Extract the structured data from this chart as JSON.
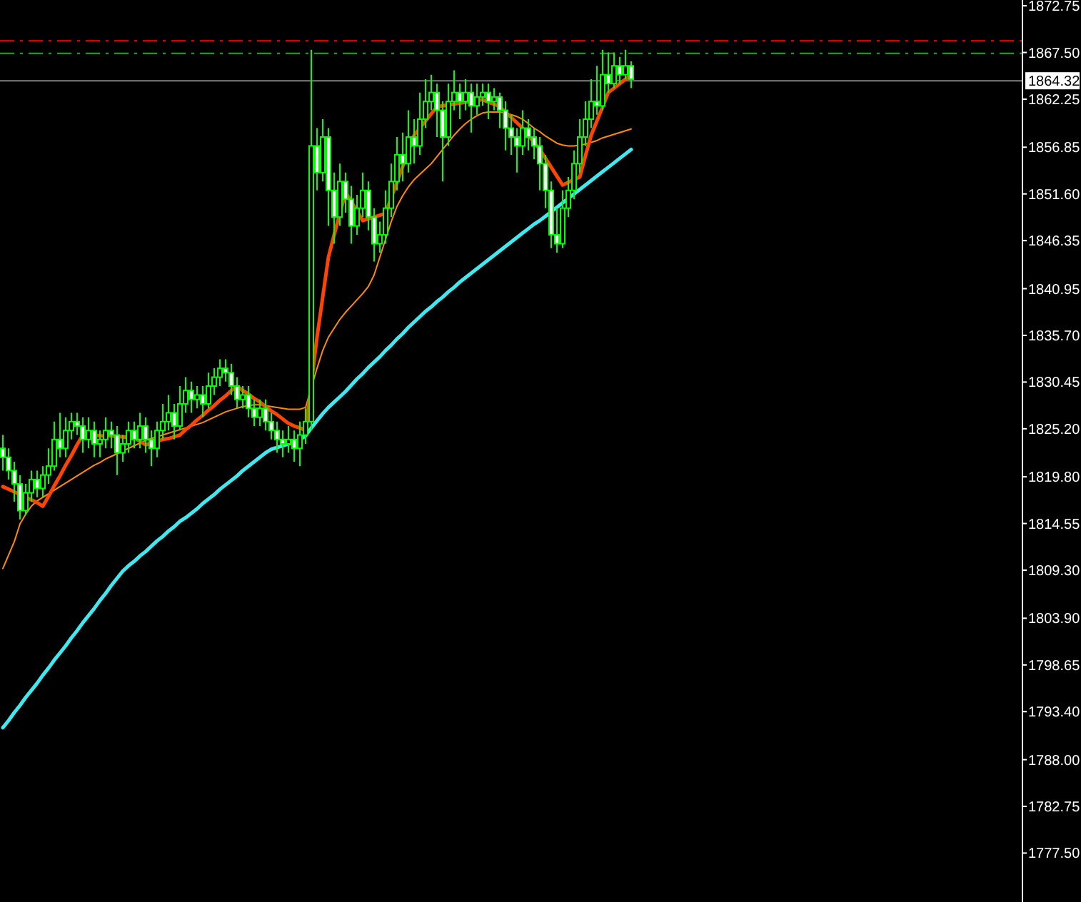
{
  "chart_data": {
    "type": "candlestick",
    "color": "#00ff00",
    "categories": [
      null,
      null,
      null,
      null,
      null,
      null,
      null,
      null,
      null,
      null,
      null,
      null,
      null,
      null,
      null,
      null,
      null,
      null,
      null,
      null,
      null,
      null,
      null,
      null,
      null,
      null,
      null,
      null,
      null,
      null,
      null,
      null,
      null,
      null,
      null,
      null,
      null,
      null,
      null,
      null,
      null,
      null,
      null,
      null,
      null,
      null,
      null,
      null,
      null,
      null,
      null,
      null,
      null,
      null,
      null,
      null,
      null,
      null,
      null,
      null,
      null,
      null,
      null,
      null,
      null,
      null,
      null,
      null,
      null,
      null,
      null,
      null,
      null,
      null,
      null,
      null,
      null,
      null,
      null,
      null,
      null,
      null,
      null,
      null,
      null,
      null,
      null,
      null,
      null,
      null,
      null,
      null,
      null,
      null,
      null,
      null,
      null,
      null,
      null,
      null,
      null,
      null,
      null,
      null,
      null,
      null,
      null,
      null,
      null,
      null,
      null
    ],
    "ohlc": [
      [
        1823,
        1824.5,
        1820.5,
        1822
      ],
      [
        1822,
        1823,
        1819.5,
        1820.5
      ],
      [
        1820.5,
        1821.5,
        1817,
        1819
      ],
      [
        1819,
        1820,
        1815,
        1816
      ],
      [
        1816,
        1819,
        1815.5,
        1818
      ],
      [
        1818,
        1820.5,
        1817,
        1819.5
      ],
      [
        1819.5,
        1820.5,
        1817.5,
        1818.5
      ],
      [
        1818.5,
        1821,
        1817.5,
        1820
      ],
      [
        1820,
        1823,
        1819,
        1821
      ],
      [
        1821,
        1826,
        1820.5,
        1824
      ],
      [
        1824,
        1827,
        1822,
        1823
      ],
      [
        1823,
        1826.5,
        1822,
        1825
      ],
      [
        1825,
        1827,
        1824,
        1826
      ],
      [
        1826,
        1827,
        1824.5,
        1825.5
      ],
      [
        1825.5,
        1826.5,
        1822.5,
        1824
      ],
      [
        1824,
        1826.5,
        1823,
        1825
      ],
      [
        1825,
        1826,
        1822,
        1823.5
      ],
      [
        1823.5,
        1825,
        1822,
        1824
      ],
      [
        1824,
        1826.5,
        1823,
        1825
      ],
      [
        1825,
        1826,
        1823,
        1824.5
      ],
      [
        1824.5,
        1825.5,
        1820,
        1822.5
      ],
      [
        1822.5,
        1824.5,
        1821.5,
        1823.5
      ],
      [
        1823.5,
        1826,
        1822.5,
        1825
      ],
      [
        1825,
        1826,
        1823,
        1824
      ],
      [
        1824,
        1827,
        1823,
        1825.5
      ],
      [
        1825.5,
        1826.5,
        1822.5,
        1824
      ],
      [
        1824,
        1825,
        1821,
        1823
      ],
      [
        1823,
        1826,
        1822,
        1825
      ],
      [
        1825,
        1828,
        1824,
        1826
      ],
      [
        1826,
        1829,
        1825,
        1827
      ],
      [
        1827,
        1828,
        1824,
        1825.5
      ],
      [
        1825.5,
        1830,
        1825,
        1828
      ],
      [
        1828,
        1831,
        1827,
        1829.5
      ],
      [
        1829.5,
        1830.5,
        1827,
        1828.5
      ],
      [
        1828.5,
        1830,
        1827.5,
        1829
      ],
      [
        1829,
        1830,
        1826.5,
        1828
      ],
      [
        1828,
        1831.5,
        1827.5,
        1830
      ],
      [
        1830,
        1832,
        1829,
        1831
      ],
      [
        1831,
        1833,
        1830,
        1832
      ],
      [
        1832,
        1833,
        1830.5,
        1831.5
      ],
      [
        1831.5,
        1832.5,
        1829,
        1830
      ],
      [
        1830,
        1831,
        1827.5,
        1828.5
      ],
      [
        1828.5,
        1830,
        1827.5,
        1829
      ],
      [
        1829,
        1830,
        1826.5,
        1827.5
      ],
      [
        1827.5,
        1828.5,
        1825.5,
        1826.5
      ],
      [
        1826.5,
        1828.5,
        1825.5,
        1827.5
      ],
      [
        1827.5,
        1828.5,
        1825,
        1826
      ],
      [
        1826,
        1827,
        1824,
        1825
      ],
      [
        1825,
        1826,
        1822.5,
        1824
      ],
      [
        1824,
        1825,
        1822,
        1823.5
      ],
      [
        1823.5,
        1825.5,
        1822.5,
        1824
      ],
      [
        1824,
        1825,
        1821.5,
        1823
      ],
      [
        1823,
        1826,
        1821,
        1824.5
      ],
      [
        1824.5,
        1827.5,
        1823.5,
        1826
      ],
      [
        1826,
        1867.8,
        1825,
        1857
      ],
      [
        1857,
        1859,
        1852,
        1854
      ],
      [
        1854,
        1860,
        1853,
        1858
      ],
      [
        1858,
        1859,
        1848,
        1852
      ],
      [
        1852,
        1854,
        1846,
        1849
      ],
      [
        1849,
        1855,
        1848,
        1853
      ],
      [
        1853,
        1854,
        1849.5,
        1851
      ],
      [
        1851,
        1852.5,
        1846,
        1848
      ],
      [
        1848,
        1851.5,
        1847,
        1850
      ],
      [
        1850,
        1854,
        1849,
        1852
      ],
      [
        1852,
        1853,
        1847.5,
        1849
      ],
      [
        1849,
        1850,
        1844,
        1846
      ],
      [
        1846,
        1848.5,
        1845,
        1847
      ],
      [
        1847,
        1852,
        1846,
        1850
      ],
      [
        1850,
        1855,
        1849,
        1853
      ],
      [
        1853,
        1858,
        1852,
        1856
      ],
      [
        1856,
        1858.5,
        1853,
        1855
      ],
      [
        1855,
        1861,
        1854,
        1858
      ],
      [
        1858,
        1860,
        1855,
        1857
      ],
      [
        1857,
        1863,
        1856,
        1860
      ],
      [
        1860,
        1864.5,
        1859,
        1862
      ],
      [
        1862,
        1865,
        1861,
        1863
      ],
      [
        1863,
        1864,
        1858,
        1861
      ],
      [
        1861,
        1862,
        1853,
        1858
      ],
      [
        1858,
        1864,
        1857,
        1862
      ],
      [
        1862,
        1865.5,
        1861,
        1863
      ],
      [
        1863,
        1864,
        1860,
        1862
      ],
      [
        1862,
        1864.5,
        1861,
        1863
      ],
      [
        1863,
        1864,
        1858.5,
        1861.5
      ],
      [
        1861.5,
        1864,
        1860.5,
        1862.5
      ],
      [
        1862.5,
        1864,
        1861.5,
        1863
      ],
      [
        1863,
        1864,
        1860,
        1862
      ],
      [
        1862,
        1863.5,
        1861,
        1862.5
      ],
      [
        1862.5,
        1863,
        1859,
        1861
      ],
      [
        1861,
        1862,
        1856.5,
        1859
      ],
      [
        1859,
        1860.5,
        1856,
        1858
      ],
      [
        1858,
        1859,
        1854,
        1857
      ],
      [
        1857,
        1861,
        1856,
        1859
      ],
      [
        1859,
        1860,
        1856.5,
        1858
      ],
      [
        1858,
        1859,
        1855.5,
        1857
      ],
      [
        1857,
        1858,
        1852,
        1855
      ],
      [
        1855,
        1856,
        1850,
        1852
      ],
      [
        1852,
        1853,
        1845.5,
        1847
      ],
      [
        1847,
        1850,
        1845,
        1846
      ],
      [
        1846,
        1852,
        1845.5,
        1850
      ],
      [
        1850,
        1853.5,
        1849,
        1852
      ],
      [
        1852,
        1856.5,
        1851,
        1855
      ],
      [
        1855,
        1860,
        1854,
        1858
      ],
      [
        1858,
        1862,
        1857,
        1860
      ],
      [
        1860,
        1864.5,
        1859,
        1862
      ],
      [
        1862,
        1866,
        1860.5,
        1861.5
      ],
      [
        1861.5,
        1867.8,
        1861,
        1865
      ],
      [
        1865,
        1867.5,
        1863,
        1864
      ],
      [
        1864,
        1867.5,
        1863.5,
        1866
      ],
      [
        1866,
        1867,
        1864,
        1865
      ],
      [
        1865,
        1867.8,
        1864.5,
        1866
      ],
      [
        1866,
        1866.5,
        1863.5,
        1864.5
      ]
    ],
    "series": [
      {
        "type": "line",
        "color": "#40e8f0",
        "values": [
          1791.6,
          1792.4,
          1793.3,
          1794.1,
          1795.0,
          1795.8,
          1796.6,
          1797.5,
          1798.3,
          1799.2,
          1800.0,
          1800.8,
          1801.7,
          1802.5,
          1803.4,
          1804.2,
          1805.0,
          1805.9,
          1806.7,
          1807.6,
          1808.4,
          1809.2,
          1809.8,
          1810.3,
          1810.9,
          1811.4,
          1812.0,
          1812.6,
          1813.1,
          1813.7,
          1814.2,
          1814.8,
          1815.2,
          1815.7,
          1816.2,
          1816.8,
          1817.3,
          1817.8,
          1818.4,
          1818.9,
          1819.4,
          1819.9,
          1820.5,
          1821.0,
          1821.5,
          1822.0,
          1822.5,
          1822.9,
          1823.1,
          1823.3,
          1823.5,
          1823.7,
          1824.0,
          1824.4,
          1825.3,
          1826.1,
          1826.9,
          1827.6,
          1828.2,
          1828.8,
          1829.4,
          1830.1,
          1830.8,
          1831.4,
          1832.1,
          1832.7,
          1833.3,
          1834.0,
          1834.6,
          1835.3,
          1835.9,
          1836.6,
          1837.2,
          1837.8,
          1838.4,
          1838.9,
          1839.5,
          1840.0,
          1840.6,
          1841.1,
          1841.7,
          1842.2,
          1842.7,
          1843.2,
          1843.7,
          1844.2,
          1844.7,
          1845.2,
          1845.7,
          1846.2,
          1846.7,
          1847.2,
          1847.7,
          1848.2,
          1848.6,
          1849.1,
          1849.6,
          1850.1,
          1850.6,
          1851.1,
          1851.6,
          1852.1,
          1852.6,
          1853.1,
          1853.6,
          1854.1,
          1854.6,
          1855.1,
          1855.6,
          1856.1,
          1856.6
        ]
      },
      {
        "type": "line",
        "color": "#ff8c00",
        "values": [
          1809.5,
          1811,
          1812.5,
          1814.5,
          1815.6,
          1816.5,
          1817.1,
          1817.5,
          1817.9,
          1818.3,
          1818.7,
          1819.1,
          1819.5,
          1819.9,
          1820.3,
          1820.7,
          1821.1,
          1821.4,
          1821.8,
          1822.1,
          1822.4,
          1822.7,
          1823.0,
          1823.3,
          1823.6,
          1823.9,
          1824.1,
          1824.3,
          1824.5,
          1824.7,
          1824.9,
          1825.1,
          1825.3,
          1825.5,
          1825.7,
          1825.9,
          1826.2,
          1826.5,
          1826.8,
          1827.1,
          1827.3,
          1827.5,
          1827.7,
          1827.8,
          1827.9,
          1827.9,
          1827.8,
          1827.7,
          1827.6,
          1827.5,
          1827.4,
          1827.4,
          1827.4,
          1827.6,
          null,
          1832,
          1834,
          1835.5,
          1836.5,
          1837.5,
          1838.3,
          1839,
          1839.7,
          1840.4,
          1841.2,
          1842.5,
          1844.5,
          1846.5,
          1848.5,
          1850.2,
          1851.4,
          1852.4,
          1853.2,
          1853.8,
          1854.4,
          1855.0,
          1855.8,
          1856.6,
          1857.4,
          1858.2,
          1858.9,
          1859.5,
          1860.0,
          1860.4,
          1860.7,
          1860.8,
          1860.8,
          1860.8,
          1860.7,
          1860.5,
          1860.3,
          1860.0,
          1859.5,
          1859.0,
          1858.6,
          1858.1,
          1857.7,
          1857.3,
          1857.1,
          1857.0,
          1857.0,
          1857.1,
          1857.2,
          1857.4,
          1857.6,
          1857.9,
          1858.1,
          1858.3,
          1858.5,
          1858.7,
          1858.9
        ]
      },
      {
        "type": "line",
        "color": "#ff4500",
        "values": [
          1818.7,
          1818.4,
          1818.1,
          1817.8,
          1817.5,
          1817.2,
          1816.9,
          1816.5,
          1817.6,
          1818.8,
          1819.9,
          1821.1,
          1822.2,
          1823.4,
          1824.5,
          1824.5,
          1824.5,
          1824.4,
          1824.4,
          1824.4,
          1824.3,
          1824.3,
          1824.2,
          1824.2,
          1823.8,
          1823.4,
          1823.6,
          1823.8,
          1824.0,
          1824.1,
          1824.3,
          1824.5,
          1825.1,
          1825.6,
          1826.2,
          1826.7,
          1827.3,
          1827.8,
          1828.4,
          1828.9,
          1829.5,
          1830.0,
          1829.5,
          1829.1,
          1828.6,
          1828.2,
          1827.7,
          1827.2,
          1826.8,
          1826.3,
          1825.8,
          1825.5,
          1825.3,
          1825.0,
          null,
          1835.5,
          1840.0,
          1844.5,
          1847.0,
          1849.4,
          1851.8,
          1850.7,
          1849.7,
          1848.6,
          1848.8,
          1849.0,
          1849.2,
          1849.4,
          1851.2,
          1852.9,
          1854.7,
          1856.4,
          1858.2,
          1859.0,
          1859.8,
          1860.6,
          1861.4,
          1861.5,
          1861.6,
          1861.7,
          1861.8,
          1861.9,
          1862.0,
          1862.1,
          1862.2,
          1861.9,
          1861.7,
          1861.4,
          1860.8,
          1860.2,
          1859.6,
          1859.0,
          1858.2,
          1857.4,
          1856.6,
          1855.6,
          1854.6,
          1853.6,
          1852.6,
          1852.9,
          1853.2,
          1853.5,
          1855.9,
          1858.2,
          1859.8,
          1861.4,
          1863.0,
          1863.5,
          1864.0,
          1864.5,
          1865.0
        ]
      }
    ],
    "ylim": [
      1772,
      1873.4
    ],
    "yticks": [
      {
        "value": 1872.75,
        "label": "1872.75"
      },
      {
        "value": 1867.5,
        "label": "1867.50"
      },
      {
        "value": 1862.25,
        "label": "1862.25"
      },
      {
        "value": 1856.85,
        "label": "1856.85"
      },
      {
        "value": 1851.6,
        "label": "1851.60"
      },
      {
        "value": 1846.35,
        "label": "1846.35"
      },
      {
        "value": 1840.95,
        "label": "1840.95"
      },
      {
        "value": 1835.7,
        "label": "1835.70"
      },
      {
        "value": 1830.45,
        "label": "1830.45"
      },
      {
        "value": 1825.2,
        "label": "1825.20"
      },
      {
        "value": 1819.8,
        "label": "1819.80"
      },
      {
        "value": 1814.55,
        "label": "1814.55"
      },
      {
        "value": 1809.3,
        "label": "1809.30"
      },
      {
        "value": 1803.9,
        "label": "1803.90"
      },
      {
        "value": 1798.65,
        "label": "1798.65"
      },
      {
        "value": 1793.4,
        "label": "1793.40"
      },
      {
        "value": 1788,
        "label": "1788.00"
      },
      {
        "value": 1782.75,
        "label": "1782.75"
      },
      {
        "value": 1777.5,
        "label": "1777.50"
      }
    ],
    "ref_lines": [
      {
        "axis": "y",
        "value": 1868.8,
        "color": "#ff0000",
        "line_style": "dashed"
      },
      {
        "axis": "y",
        "value": 1867.4,
        "color": "#00c000",
        "line_style": "dashed"
      },
      {
        "axis": "y",
        "value": 1864.32,
        "label": "1864.32",
        "color": "#808080",
        "line_style": "solid"
      }
    ],
    "tick_labels": "y"
  }
}
